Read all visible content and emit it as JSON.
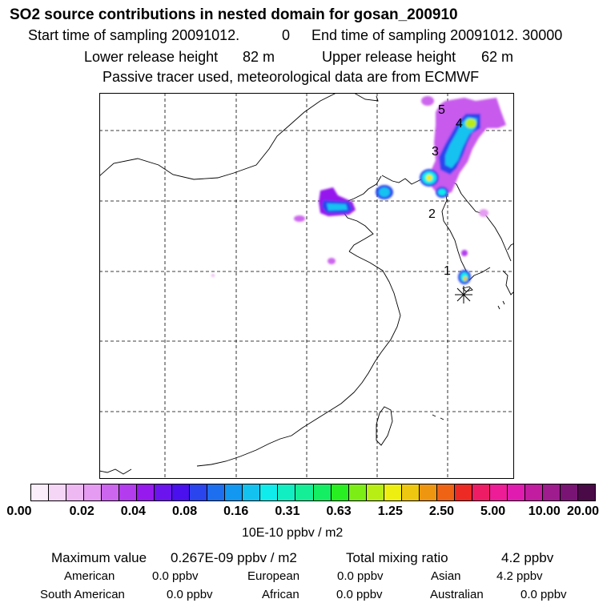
{
  "header": {
    "title": "SO2 source contributions in nested domain for gosan_200910",
    "start_label": "Start time of sampling 20091012.",
    "start_value": "0",
    "end_label": "End time of sampling 20091012. 30000",
    "lower_label": "Lower release height",
    "lower_value": "82 m",
    "upper_label": "Upper release height",
    "upper_value": "62 m",
    "note": "Passive tracer used, meteorological data are from ECMWF"
  },
  "map": {
    "station_labels": [
      "1",
      "2",
      "3",
      "4",
      "5"
    ]
  },
  "colorbar": {
    "colors": [
      "#fbeefb",
      "#f5d6f7",
      "#eeb8f3",
      "#e59bf1",
      "#cc66ee",
      "#b33cee",
      "#9619ee",
      "#6c14ee",
      "#4a10ee",
      "#2a44ee",
      "#1e6ef0",
      "#1298f0",
      "#14c2f0",
      "#10ecec",
      "#11eec2",
      "#14ee96",
      "#14ee62",
      "#28ee22",
      "#7cee16",
      "#b8ee14",
      "#eeee10",
      "#eec810",
      "#ee9610",
      "#ee6414",
      "#ee2a24",
      "#ee1c64",
      "#ee1c96",
      "#e01cb0",
      "#c21ca0",
      "#9e1c8e",
      "#7a1474",
      "#4a0a48"
    ],
    "tick_labels": [
      "0.00",
      "0.02",
      "0.04",
      "0.08",
      "0.16",
      "0.31",
      "0.63",
      "1.25",
      "2.50",
      "5.00",
      "10.00",
      "20.00"
    ],
    "units": "10E-10 ppbv / m2"
  },
  "stats": {
    "max_label": "Maximum value",
    "max_value": "0.267E-09 ppbv / m2",
    "total_label": "Total mixing ratio",
    "total_value": "4.2 ppbv"
  },
  "regions": {
    "american_label": "American",
    "american_value": "0.0 ppbv",
    "european_label": "European",
    "european_value": "0.0 ppbv",
    "asian_label": "Asian",
    "asian_value": "4.2 ppbv",
    "south_american_label": "South American",
    "south_american_value": "0.0 ppbv",
    "african_label": "African",
    "african_value": "0.0 ppbv",
    "australian_label": "Australian",
    "australian_value": "0.0 ppbv"
  }
}
